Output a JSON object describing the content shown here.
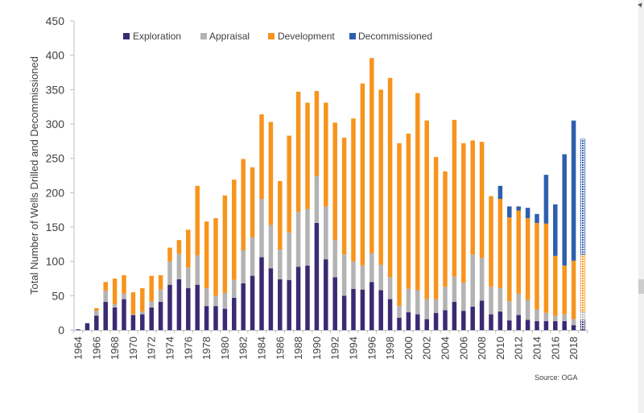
{
  "colors": {
    "exploration": "#3b2a73",
    "appraisal": "#b3b3b3",
    "development": "#f7941d",
    "decommissioned": "#2e5fae",
    "axis": "#bfbfbf"
  },
  "chart_data": {
    "type": "bar",
    "stacked": true,
    "title": "",
    "xlabel": "",
    "ylabel": "Total Number of Wells Drilled and Decommissioned",
    "ylim": [
      0,
      450
    ],
    "yticks": [
      0,
      50,
      100,
      150,
      200,
      250,
      300,
      350,
      400,
      450
    ],
    "grid": false,
    "legend_position": "top",
    "source": "Source: OGA",
    "x_tick_labels": [
      "1964",
      "1966",
      "1968",
      "1970",
      "1972",
      "1974",
      "1976",
      "1978",
      "1980",
      "1982",
      "1984",
      "1986",
      "1988",
      "1990",
      "1992",
      "1994",
      "1996",
      "1998",
      "2000",
      "2002",
      "2004",
      "2006",
      "2008",
      "2010",
      "2012",
      "2014",
      "2016",
      "2018"
    ],
    "categories": [
      "1964",
      "1965",
      "1966",
      "1967",
      "1968",
      "1969",
      "1970",
      "1971",
      "1972",
      "1973",
      "1974",
      "1975",
      "1976",
      "1977",
      "1978",
      "1979",
      "1980",
      "1981",
      "1982",
      "1983",
      "1984",
      "1985",
      "1986",
      "1987",
      "1988",
      "1989",
      "1990",
      "1991",
      "1992",
      "1993",
      "1994",
      "1995",
      "1996",
      "1997",
      "1998",
      "1999",
      "2000",
      "2001",
      "2002",
      "2003",
      "2004",
      "2005",
      "2006",
      "2007",
      "2008",
      "2009",
      "2010",
      "2011",
      "2012",
      "2013",
      "2014",
      "2015",
      "2016",
      "2017",
      "2018",
      "2019"
    ],
    "hatched_categories": [
      "2019"
    ],
    "series": [
      {
        "name": "Exploration",
        "key": "exploration",
        "values": [
          1,
          10,
          21,
          41,
          33,
          45,
          22,
          23,
          33,
          41,
          66,
          74,
          61,
          66,
          35,
          35,
          31,
          47,
          68,
          79,
          106,
          90,
          74,
          73,
          92,
          94,
          156,
          103,
          77,
          50,
          60,
          59,
          70,
          58,
          45,
          18,
          26,
          23,
          16,
          25,
          29,
          41,
          28,
          34,
          43,
          23,
          27,
          14,
          22,
          15,
          13,
          13,
          13,
          13,
          7,
          15
        ]
      },
      {
        "name": "Appraisal",
        "key": "appraisal",
        "values": [
          0,
          0,
          7,
          16,
          5,
          8,
          1,
          4,
          9,
          18,
          34,
          37,
          30,
          43,
          26,
          15,
          23,
          26,
          48,
          56,
          85,
          63,
          43,
          69,
          80,
          82,
          68,
          77,
          54,
          60,
          40,
          35,
          42,
          37,
          32,
          17,
          34,
          35,
          29,
          20,
          34,
          37,
          41,
          76,
          62,
          40,
          34,
          28,
          31,
          29,
          17,
          12,
          8,
          10,
          9,
          12
        ]
      },
      {
        "name": "Development",
        "key": "development",
        "values": [
          0,
          0,
          4,
          13,
          37,
          27,
          32,
          34,
          37,
          21,
          20,
          20,
          55,
          101,
          97,
          113,
          142,
          146,
          133,
          102,
          123,
          150,
          100,
          141,
          175,
          155,
          124,
          151,
          171,
          170,
          208,
          265,
          284,
          255,
          290,
          237,
          226,
          287,
          260,
          207,
          168,
          228,
          203,
          166,
          169,
          132,
          130,
          122,
          121,
          119,
          126,
          130,
          87,
          71,
          85,
          83
        ]
      },
      {
        "name": "Decommissioned",
        "key": "decommissioned",
        "values": [
          0,
          0,
          0,
          0,
          0,
          0,
          0,
          0,
          0,
          0,
          0,
          0,
          0,
          0,
          0,
          0,
          0,
          0,
          0,
          0,
          0,
          0,
          0,
          0,
          0,
          0,
          0,
          0,
          0,
          0,
          0,
          0,
          0,
          0,
          0,
          0,
          0,
          0,
          0,
          0,
          0,
          0,
          0,
          0,
          0,
          0,
          19,
          16,
          6,
          15,
          13,
          71,
          75,
          162,
          204,
          168
        ]
      }
    ]
  }
}
